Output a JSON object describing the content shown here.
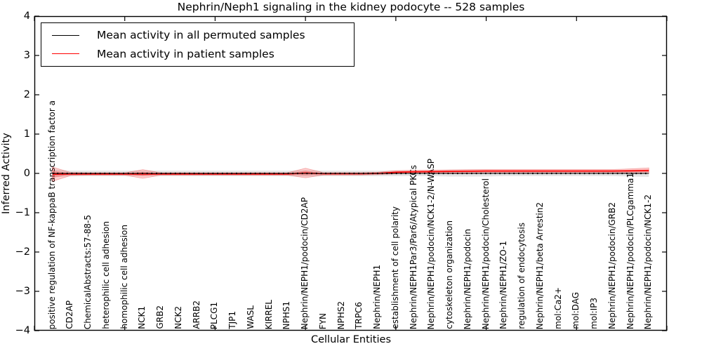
{
  "figure": {
    "title": "Nephrin/Neph1 signaling in the kidney podocyte -- 528 samples",
    "xlabel": "Cellular Entities",
    "ylabel": "Inferred Activity",
    "legend": {
      "items": [
        {
          "label": "Mean activity in all permuted samples",
          "color": "#000000"
        },
        {
          "label": "Mean activity in patient samples",
          "color": "#ff0000"
        }
      ]
    },
    "ytick_labels": [
      "4",
      "3",
      "2",
      "1",
      "0",
      "−1",
      "−2",
      "−3",
      "−4"
    ],
    "colors": {
      "permuted_line": "#000000",
      "patient_line": "#ff0000",
      "permuted_band": "rgba(0,0,0,0.10)",
      "patient_band": "rgba(255,0,0,0.18)",
      "patient_band_inner": "rgba(255,0,0,0.22)",
      "frame": "#000000",
      "background": "#ffffff"
    }
  },
  "chart_data": {
    "type": "line",
    "title": "Nephrin/Neph1 signaling in the kidney podocyte -- 528 samples",
    "xlabel": "Cellular Entities",
    "ylabel": "Inferred Activity",
    "ylim": [
      -4,
      4
    ],
    "grid": false,
    "legend_position": "upper left",
    "categories": [
      "positive regulation of NF-kappaB transcription factor a",
      "CD2AP",
      "ChemicalAbstracts:57-88-5",
      "heterophilic cell adhesion",
      "homophilic cell adhesion",
      "NCK1",
      "GRB2",
      "NCK2",
      "ARRB2",
      "PLCG1",
      "TJP1",
      "WASL",
      "KIRREL",
      "NPHS1",
      "Nephrin/NEPH1/podocin/CD2AP",
      "FYN",
      "NPHS2",
      "TRPC6",
      "Nephrin/NEPH1",
      "establishment of cell polarity",
      "Nephrin/NEPH1Par3/Par6/Atypical PKCs",
      "Nephrin/NEPH1/podocin/NCK1-2/N-WASP",
      "cytoskeleton organization",
      "Nephrin/NEPH1/podocin",
      "Nephrin/NEPH1/podocin/Cholesterol",
      "Nephrin/NEPH1/ZO-1",
      "regulation of endocytosis",
      "Nephrin/NEPH1/beta Arrestin2",
      "mol:Ca2+",
      "mol:DAG",
      "mol:IP3",
      "Nephrin/NEPH1/podocin/GRB2",
      "Nephrin/NEPH1/podocin/PLCgamma1",
      "Nephrin/NEPH1/podocin/NCK1-2"
    ],
    "series": [
      {
        "name": "Mean activity in all permuted samples",
        "color": "#000000",
        "values": [
          0,
          0,
          0,
          0,
          0,
          0,
          0,
          0,
          0,
          0,
          0,
          0,
          0,
          0,
          0,
          0,
          0,
          0,
          0,
          0,
          0,
          0,
          0,
          0,
          0,
          0,
          0,
          0,
          0,
          0,
          0,
          0,
          0,
          0
        ],
        "band_halfwidth": [
          0.1,
          0.07,
          0.07,
          0.07,
          0.07,
          0.07,
          0.07,
          0.07,
          0.07,
          0.07,
          0.07,
          0.07,
          0.07,
          0.07,
          0.08,
          0.07,
          0.07,
          0.07,
          0.07,
          0.07,
          0.07,
          0.07,
          0.08,
          0.08,
          0.08,
          0.07,
          0.07,
          0.07,
          0.07,
          0.07,
          0.07,
          0.07,
          0.08,
          0.09
        ]
      },
      {
        "name": "Mean activity in patient samples",
        "color": "#ff0000",
        "values": [
          -0.02,
          -0.015,
          -0.015,
          -0.015,
          -0.015,
          -0.015,
          -0.015,
          -0.015,
          -0.015,
          -0.015,
          -0.015,
          -0.015,
          -0.015,
          -0.015,
          0.01,
          -0.01,
          -0.01,
          -0.01,
          0.0,
          0.03,
          0.04,
          0.045,
          0.05,
          0.055,
          0.06,
          0.06,
          0.06,
          0.06,
          0.06,
          0.06,
          0.06,
          0.06,
          0.065,
          0.07
        ],
        "band_halfwidth": [
          0.18,
          0.04,
          0.03,
          0.03,
          0.03,
          0.11,
          0.03,
          0.03,
          0.03,
          0.03,
          0.03,
          0.03,
          0.03,
          0.03,
          0.12,
          0.03,
          0.03,
          0.03,
          0.03,
          0.04,
          0.04,
          0.04,
          0.04,
          0.04,
          0.04,
          0.04,
          0.04,
          0.04,
          0.04,
          0.04,
          0.04,
          0.04,
          0.05,
          0.07
        ]
      }
    ],
    "ytick_values": [
      4,
      3,
      2,
      1,
      0,
      -1,
      -2,
      -3,
      -4
    ],
    "sample_count": 528
  }
}
